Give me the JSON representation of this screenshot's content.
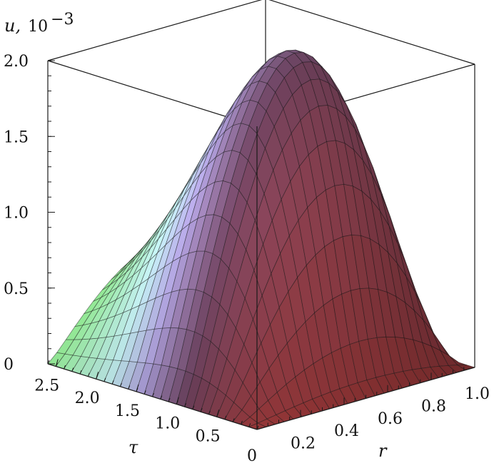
{
  "chart_data": {
    "type": "surface3d",
    "title": "",
    "zlabel_var": "u,",
    "zlabel_units": "10",
    "zlabel_exp": "−3",
    "rlabel": "r",
    "taulabel": "τ",
    "r_range": [
      0,
      1.0
    ],
    "tau_range": [
      0,
      2.6
    ],
    "z_range": [
      0,
      2.0
    ],
    "z_ticks": [
      "0",
      "0.5",
      "1.0",
      "1.5",
      "2.0"
    ],
    "z_tick_values": [
      0,
      0.5,
      1.0,
      1.5,
      2.0
    ],
    "r_ticks": [
      "0",
      "0.2",
      "0.4",
      "0.6",
      "0.8",
      "1.0"
    ],
    "r_tick_values": [
      0,
      0.2,
      0.4,
      0.6,
      0.8,
      1.0
    ],
    "tau_ticks": [
      "0.5",
      "1.0",
      "1.5",
      "2.0",
      "2.5"
    ],
    "tau_tick_values": [
      0.5,
      1.0,
      1.5,
      2.0,
      2.5
    ],
    "surface_peak": {
      "r": 0.45,
      "tau": 1.05,
      "u": 2.1
    },
    "colors": {
      "low_tau_high_r": "#d04a4a",
      "mid": "#7a4a6a",
      "peak": "#b8a8e8",
      "high_tau": "#90e890",
      "cyan": "#c8f4f8"
    }
  }
}
